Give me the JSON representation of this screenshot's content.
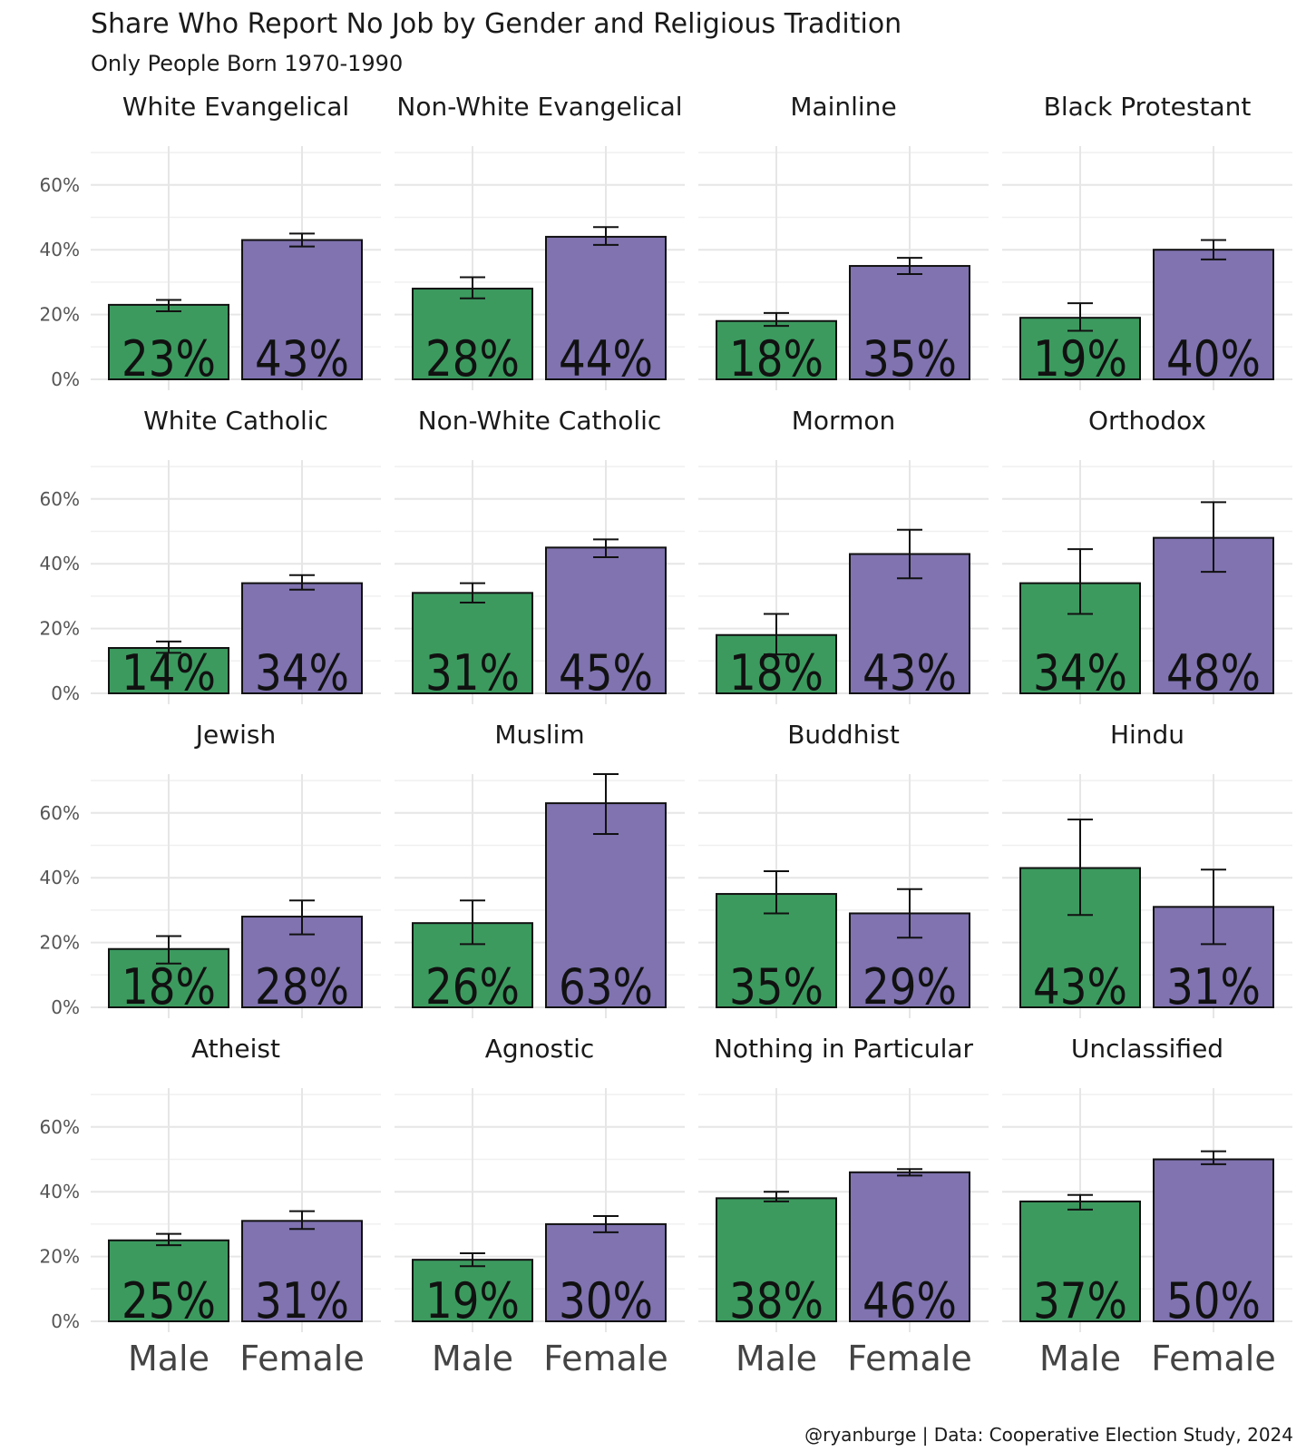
{
  "chart_data": {
    "type": "bar",
    "title": "Share Who Report No Job by Gender and Religious Tradition",
    "subtitle": "Only People Born 1970-1990",
    "caption": "@ryanburge | Data: Cooperative Election Study, 2024",
    "categories": [
      "Male",
      "Female"
    ],
    "ylim": [
      0,
      0.72
    ],
    "yticks": [
      0,
      0.2,
      0.4,
      0.6
    ],
    "ytick_labels": [
      "0%",
      "20%",
      "40%",
      "60%"
    ],
    "colors": {
      "Male": "#3c9a5f",
      "Female": "#8073b0"
    },
    "panels": [
      {
        "name": "White Evangelical",
        "values": [
          0.23,
          0.43
        ],
        "labels": [
          "23%",
          "43%"
        ],
        "err_low": [
          0.21,
          0.41
        ],
        "err_high": [
          0.245,
          0.45
        ]
      },
      {
        "name": "Non-White Evangelical",
        "values": [
          0.28,
          0.44
        ],
        "labels": [
          "28%",
          "44%"
        ],
        "err_low": [
          0.25,
          0.415
        ],
        "err_high": [
          0.315,
          0.47
        ]
      },
      {
        "name": "Mainline",
        "values": [
          0.18,
          0.35
        ],
        "labels": [
          "18%",
          "35%"
        ],
        "err_low": [
          0.165,
          0.325
        ],
        "err_high": [
          0.205,
          0.375
        ]
      },
      {
        "name": "Black Protestant",
        "values": [
          0.19,
          0.4
        ],
        "labels": [
          "19%",
          "40%"
        ],
        "err_low": [
          0.15,
          0.37
        ],
        "err_high": [
          0.235,
          0.43
        ]
      },
      {
        "name": "White Catholic",
        "values": [
          0.14,
          0.34
        ],
        "labels": [
          "14%",
          "34%"
        ],
        "err_low": [
          0.125,
          0.32
        ],
        "err_high": [
          0.16,
          0.365
        ]
      },
      {
        "name": "Non-White Catholic",
        "values": [
          0.31,
          0.45
        ],
        "labels": [
          "31%",
          "45%"
        ],
        "err_low": [
          0.28,
          0.42
        ],
        "err_high": [
          0.34,
          0.475
        ]
      },
      {
        "name": "Mormon",
        "values": [
          0.18,
          0.43
        ],
        "labels": [
          "18%",
          "43%"
        ],
        "err_low": [
          0.12,
          0.355
        ],
        "err_high": [
          0.245,
          0.505
        ]
      },
      {
        "name": "Orthodox",
        "values": [
          0.34,
          0.48
        ],
        "labels": [
          "34%",
          "48%"
        ],
        "err_low": [
          0.245,
          0.375
        ],
        "err_high": [
          0.445,
          0.59
        ]
      },
      {
        "name": "Jewish",
        "values": [
          0.18,
          0.28
        ],
        "labels": [
          "18%",
          "28%"
        ],
        "err_low": [
          0.135,
          0.225
        ],
        "err_high": [
          0.22,
          0.33
        ]
      },
      {
        "name": "Muslim",
        "values": [
          0.26,
          0.63
        ],
        "labels": [
          "26%",
          "63%"
        ],
        "err_low": [
          0.195,
          0.535
        ],
        "err_high": [
          0.33,
          0.72
        ]
      },
      {
        "name": "Buddhist",
        "values": [
          0.35,
          0.29
        ],
        "labels": [
          "35%",
          "29%"
        ],
        "err_low": [
          0.29,
          0.215
        ],
        "err_high": [
          0.42,
          0.365
        ]
      },
      {
        "name": "Hindu",
        "values": [
          0.43,
          0.31
        ],
        "labels": [
          "43%",
          "31%"
        ],
        "err_low": [
          0.285,
          0.195
        ],
        "err_high": [
          0.58,
          0.425
        ]
      },
      {
        "name": "Atheist",
        "values": [
          0.25,
          0.31
        ],
        "labels": [
          "25%",
          "31%"
        ],
        "err_low": [
          0.235,
          0.285
        ],
        "err_high": [
          0.27,
          0.34
        ]
      },
      {
        "name": "Agnostic",
        "values": [
          0.19,
          0.3
        ],
        "labels": [
          "19%",
          "30%"
        ],
        "err_low": [
          0.17,
          0.275
        ],
        "err_high": [
          0.21,
          0.325
        ]
      },
      {
        "name": "Nothing in Particular",
        "values": [
          0.38,
          0.46
        ],
        "labels": [
          "38%",
          "46%"
        ],
        "err_low": [
          0.37,
          0.45
        ],
        "err_high": [
          0.4,
          0.47
        ]
      },
      {
        "name": "Unclassified",
        "values": [
          0.37,
          0.5
        ],
        "labels": [
          "37%",
          "50%"
        ],
        "err_low": [
          0.345,
          0.485
        ],
        "err_high": [
          0.39,
          0.525
        ]
      }
    ]
  }
}
